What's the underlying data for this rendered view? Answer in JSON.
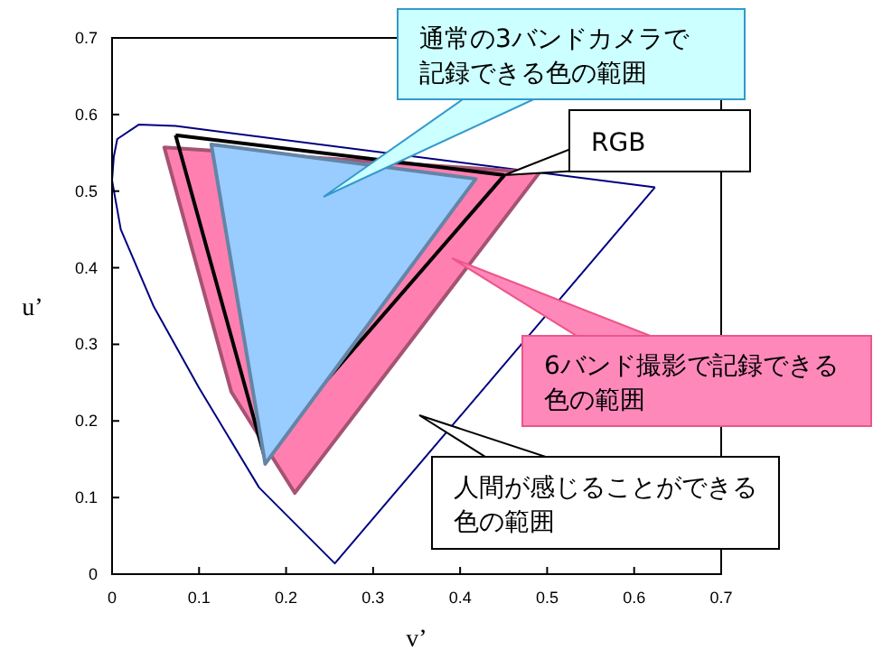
{
  "chart_data": {
    "type": "line",
    "xlabel": "v’",
    "ylabel": "u’",
    "xlim": [
      0,
      0.7
    ],
    "ylim": [
      0,
      0.7
    ],
    "xticks": [
      0,
      0.1,
      0.2,
      0.3,
      0.4,
      0.5,
      0.6,
      0.7
    ],
    "yticks": [
      0,
      0.1,
      0.2,
      0.3,
      0.4,
      0.5,
      0.6,
      0.7
    ],
    "grid": false,
    "marker": "none",
    "line_style": "solid",
    "series": [
      {
        "color": "#000080",
        "x": [
          0.0,
          0.01,
          0.048,
          0.1,
          0.169,
          0.256,
          0.624,
          null,
          0.0,
          0.002,
          0.006,
          0.031,
          0.073,
          0.624
        ],
        "values": [
          0.514,
          0.45,
          0.349,
          0.243,
          0.113,
          0.014,
          0.505,
          null,
          0.514,
          0.545,
          0.568,
          0.587,
          0.585,
          0.505
        ]
      },
      {
        "type": "area",
        "color": "#ff80b0",
        "x": [
          0.06,
          0.491,
          0.21,
          0.137,
          0.06
        ],
        "values": [
          0.557,
          0.524,
          0.106,
          0.238,
          0.557
        ]
      },
      {
        "color": "#000000",
        "x": [
          0.073,
          0.174,
          0.451,
          null,
          0.073,
          0.451
        ],
        "values": [
          0.573,
          0.158,
          0.521,
          null,
          0.573,
          0.521
        ]
      },
      {
        "type": "area",
        "color": "#99ccff",
        "x": [
          0.114,
          0.418,
          0.176,
          0.114
        ],
        "values": [
          0.561,
          0.516,
          0.144,
          0.561
        ]
      }
    ],
    "annotations": [
      "通常の3バンドカメラで記録できる色の範囲",
      "RGB",
      "6バンド撮影で記録できる色の範囲",
      "人間が感じることができる色の範囲"
    ]
  }
}
